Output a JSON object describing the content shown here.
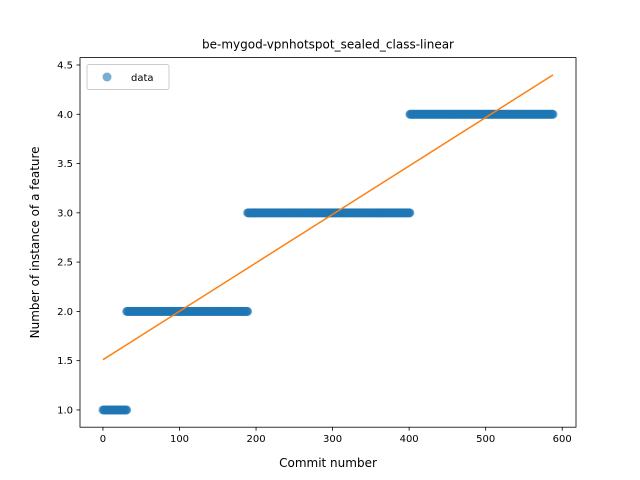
{
  "chart_data": {
    "type": "scatter",
    "title": "be-mygod-vpnhotspot_sealed_class-linear",
    "xlabel": "Commit number",
    "ylabel": "Number of instance of a feature",
    "xlim": [
      -30,
      618
    ],
    "ylim": [
      0.825,
      4.575
    ],
    "xticks": [
      0,
      100,
      200,
      300,
      400,
      500,
      600
    ],
    "xtick_labels": [
      "0",
      "100",
      "200",
      "300",
      "400",
      "500",
      "600"
    ],
    "yticks": [
      1.0,
      1.5,
      2.0,
      2.5,
      3.0,
      3.5,
      4.0,
      4.5
    ],
    "ytick_labels": [
      "1.0",
      "1.5",
      "2.0",
      "2.5",
      "3.0",
      "3.5",
      "4.0",
      "4.5"
    ],
    "grid": false,
    "legend_position": "top-left",
    "series": [
      {
        "name": "data",
        "kind": "scatter",
        "color": "#1f77b4",
        "segments": [
          {
            "x_start": 0,
            "x_end": 31,
            "y": 1.0
          },
          {
            "x_start": 31,
            "x_end": 189,
            "y": 2.0
          },
          {
            "x_start": 189,
            "x_end": 401,
            "y": 3.0
          },
          {
            "x_start": 401,
            "x_end": 588,
            "y": 4.0
          }
        ]
      },
      {
        "kind": "line",
        "color": "#ff7f0e",
        "x": [
          0,
          588
        ],
        "y": [
          1.51,
          4.4
        ]
      }
    ]
  }
}
